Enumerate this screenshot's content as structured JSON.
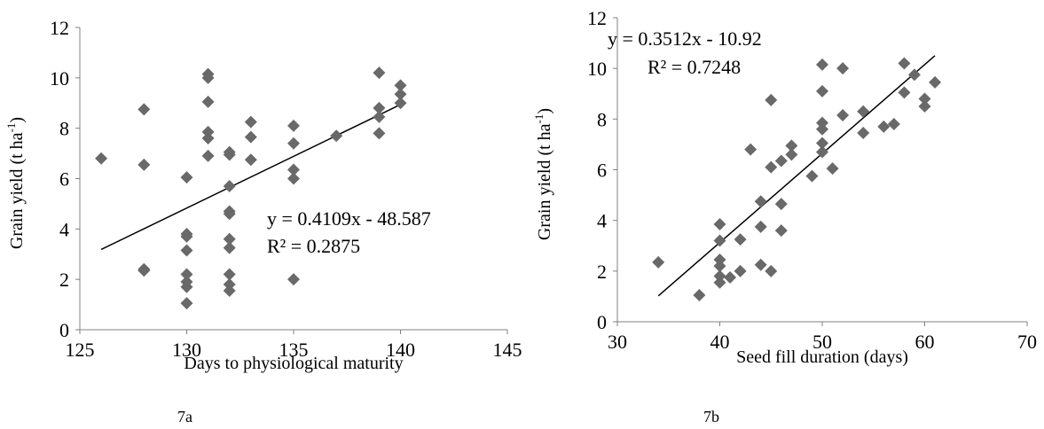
{
  "chart_data": [
    {
      "type": "scatter",
      "xlabel": "Days to physiological maturity",
      "ylabel": "Grain yield (t ha",
      "ylabel_sup": "-1",
      "ylabel_tail": ")",
      "xlim": [
        125,
        145
      ],
      "ylim": [
        0,
        12
      ],
      "xticks": [
        125,
        130,
        135,
        140,
        145
      ],
      "yticks": [
        0,
        2,
        4,
        6,
        8,
        10,
        12
      ],
      "grid": false,
      "marker_color": "#696969",
      "trendline": {
        "slope": 0.4109,
        "intercept": -48.587,
        "x_range": [
          126,
          140
        ]
      },
      "equation_lines": [
        "y = 0.4109x - 48.587",
        "R² = 0.2875"
      ],
      "caption": "7a",
      "points": [
        [
          126,
          6.8
        ],
        [
          128,
          8.75
        ],
        [
          128,
          6.55
        ],
        [
          128,
          2.4
        ],
        [
          128,
          2.35
        ],
        [
          130,
          6.05
        ],
        [
          130,
          3.8
        ],
        [
          130,
          3.7
        ],
        [
          130,
          3.15
        ],
        [
          130,
          2.2
        ],
        [
          130,
          1.9
        ],
        [
          130,
          1.7
        ],
        [
          130,
          1.05
        ],
        [
          131,
          10.15
        ],
        [
          131,
          10.0
        ],
        [
          131,
          9.05
        ],
        [
          131,
          7.85
        ],
        [
          131,
          7.6
        ],
        [
          131,
          6.9
        ],
        [
          132,
          7.05
        ],
        [
          132,
          6.95
        ],
        [
          132,
          5.7
        ],
        [
          132,
          4.7
        ],
        [
          132,
          4.6
        ],
        [
          132,
          3.6
        ],
        [
          132,
          3.25
        ],
        [
          132,
          2.2
        ],
        [
          132,
          1.8
        ],
        [
          132,
          1.55
        ],
        [
          133,
          8.25
        ],
        [
          133,
          7.65
        ],
        [
          133,
          6.75
        ],
        [
          135,
          8.1
        ],
        [
          135,
          7.4
        ],
        [
          135,
          6.35
        ],
        [
          135,
          6.0
        ],
        [
          135,
          2.0
        ],
        [
          137,
          7.7
        ],
        [
          139,
          10.2
        ],
        [
          139,
          8.8
        ],
        [
          139,
          8.45
        ],
        [
          139,
          7.8
        ],
        [
          140,
          9.7
        ],
        [
          140,
          9.35
        ],
        [
          140,
          9.0
        ]
      ]
    },
    {
      "type": "scatter",
      "xlabel": "Seed fill duration (days)",
      "ylabel": "Grain yield (t ha",
      "ylabel_sup": "-1",
      "ylabel_tail": ")",
      "xlim": [
        30,
        70
      ],
      "ylim": [
        0,
        12
      ],
      "xticks": [
        30,
        40,
        50,
        60,
        70
      ],
      "yticks": [
        0,
        2,
        4,
        6,
        8,
        10,
        12
      ],
      "grid": false,
      "marker_color": "#696969",
      "trendline": {
        "slope": 0.3512,
        "intercept": -10.92,
        "x_range": [
          34,
          61
        ]
      },
      "equation_lines": [
        "y = 0.3512x - 10.92",
        "R² = 0.7248"
      ],
      "caption": "7b",
      "points": [
        [
          34,
          2.35
        ],
        [
          38,
          1.05
        ],
        [
          40,
          3.85
        ],
        [
          40,
          3.2
        ],
        [
          40,
          2.45
        ],
        [
          40,
          2.2
        ],
        [
          40,
          1.8
        ],
        [
          40,
          1.55
        ],
        [
          41,
          1.75
        ],
        [
          42,
          3.25
        ],
        [
          42,
          2.0
        ],
        [
          43,
          6.8
        ],
        [
          44,
          4.75
        ],
        [
          44,
          3.75
        ],
        [
          44,
          2.25
        ],
        [
          45,
          8.75
        ],
        [
          45,
          6.1
        ],
        [
          45,
          2.0
        ],
        [
          46,
          6.35
        ],
        [
          46,
          4.65
        ],
        [
          46,
          3.6
        ],
        [
          47,
          6.95
        ],
        [
          47,
          6.6
        ],
        [
          49,
          5.75
        ],
        [
          50,
          10.15
        ],
        [
          50,
          9.1
        ],
        [
          50,
          7.85
        ],
        [
          50,
          7.6
        ],
        [
          50,
          7.05
        ],
        [
          50,
          6.7
        ],
        [
          51,
          6.05
        ],
        [
          52,
          10.0
        ],
        [
          52,
          8.15
        ],
        [
          54,
          8.3
        ],
        [
          54,
          7.45
        ],
        [
          56,
          7.7
        ],
        [
          57,
          7.8
        ],
        [
          58,
          10.2
        ],
        [
          58,
          9.05
        ],
        [
          59,
          9.75
        ],
        [
          60,
          8.8
        ],
        [
          60,
          8.5
        ],
        [
          61,
          9.45
        ]
      ]
    }
  ]
}
